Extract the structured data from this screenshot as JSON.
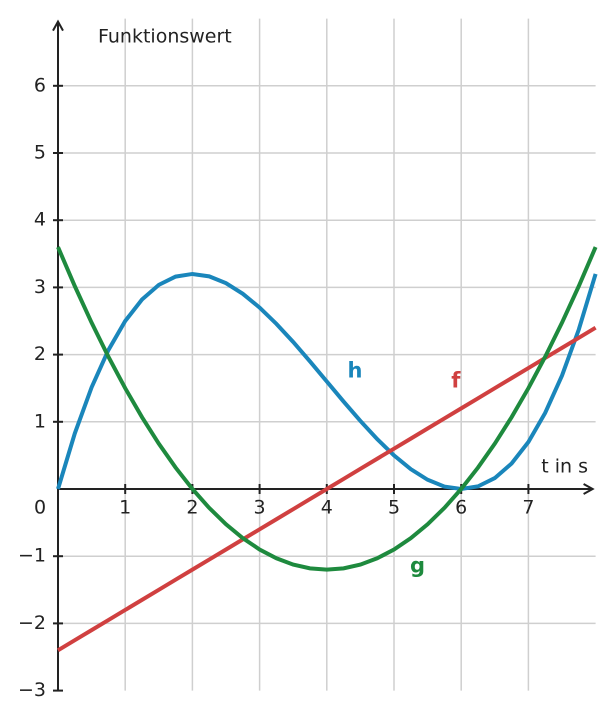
{
  "chart_data": {
    "type": "line",
    "ylabel": "Funktionswert",
    "xlabel": "t in s",
    "x": [
      0,
      0.25,
      0.5,
      0.75,
      1,
      1.25,
      1.5,
      1.75,
      2,
      2.25,
      2.5,
      2.75,
      3,
      3.25,
      3.5,
      3.75,
      4,
      4.25,
      4.5,
      4.75,
      5,
      5.25,
      5.5,
      5.75,
      6,
      6.25,
      6.5,
      6.75,
      7,
      7.25,
      7.5,
      7.75,
      8
    ],
    "series": [
      {
        "name": "h",
        "color": "#1a86bb",
        "values": [
          0,
          0.827,
          1.5125,
          2.0672,
          2.5,
          2.8203,
          3.0375,
          3.1609,
          3.2,
          3.1641,
          3.0625,
          2.9047,
          2.7,
          2.4578,
          2.1875,
          1.8984,
          1.6,
          1.3016,
          1.0125,
          0.7422,
          0.5,
          0.2953,
          0.1375,
          0.0359,
          0,
          0.0391,
          0.1625,
          0.3797,
          0.7,
          1.1328,
          1.6875,
          2.3734,
          3.2
        ]
      },
      {
        "name": "f",
        "color": "#d04040",
        "values": [
          -2.4,
          -2.25,
          -2.1,
          -1.95,
          -1.8,
          -1.65,
          -1.5,
          -1.35,
          -1.2,
          -1.05,
          -0.9,
          -0.75,
          -0.6,
          -0.45,
          -0.3,
          -0.15,
          0,
          0.15,
          0.3,
          0.45,
          0.6,
          0.75,
          0.9,
          1.05,
          1.2,
          1.35,
          1.5,
          1.65,
          1.8,
          1.95,
          2.1,
          2.25,
          2.4
        ]
      },
      {
        "name": "g",
        "color": "#1e8a3e",
        "values": [
          3.6,
          3.01875,
          2.475,
          1.96875,
          1.5,
          1.06875,
          0.675,
          0.31875,
          0,
          -0.28125,
          -0.525,
          -0.73125,
          -0.9,
          -1.03125,
          -1.125,
          -1.18125,
          -1.2,
          -1.18125,
          -1.125,
          -1.03125,
          -0.9,
          -0.73125,
          -0.525,
          -0.28125,
          0,
          0.31875,
          0.675,
          1.06875,
          1.5,
          1.96875,
          2.475,
          3.01875,
          3.6
        ]
      }
    ],
    "xlim": [
      0,
      8
    ],
    "ylim": [
      -3,
      7
    ],
    "xticks": [
      0,
      1,
      2,
      3,
      4,
      5,
      6,
      7
    ],
    "yticks": [
      {
        "value": -3,
        "label": "−3"
      },
      {
        "value": -2,
        "label": "−2"
      },
      {
        "value": -1,
        "label": "−1"
      },
      1,
      2,
      3,
      4,
      5,
      6
    ],
    "grid": true
  }
}
